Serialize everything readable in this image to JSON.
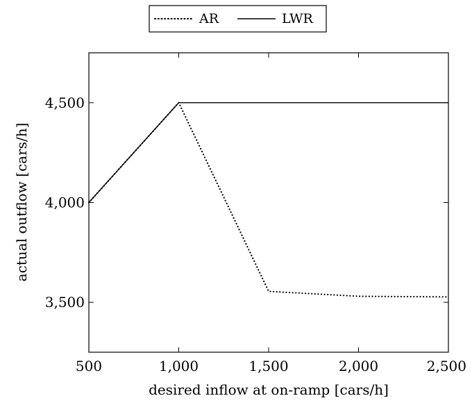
{
  "chart_data": {
    "type": "line",
    "title": "",
    "xlabel": "desired inflow at on-ramp [cars/h]",
    "ylabel": "actual outflow [cars/h]",
    "xlim": [
      500,
      2500
    ],
    "ylim": [
      3250,
      4750
    ],
    "xticks": [
      500,
      1000,
      1500,
      2000,
      2500
    ],
    "xtick_labels": [
      "500",
      "1,000",
      "1,500",
      "2,000",
      "2,500"
    ],
    "yticks": [
      3500,
      4000,
      4500
    ],
    "ytick_labels": [
      "3,500",
      "4,000",
      "4,500"
    ],
    "grid": false,
    "legend_position": "top-center",
    "series": [
      {
        "name": "AR",
        "style": "dotted",
        "color": "#000000",
        "x": [
          500,
          1000,
          1500,
          2000,
          2500
        ],
        "y": [
          4000,
          4500,
          3555,
          3530,
          3527
        ]
      },
      {
        "name": "LWR",
        "style": "solid",
        "color": "#000000",
        "x": [
          500,
          1000,
          2500
        ],
        "y": [
          4000,
          4500,
          4500
        ]
      }
    ]
  }
}
